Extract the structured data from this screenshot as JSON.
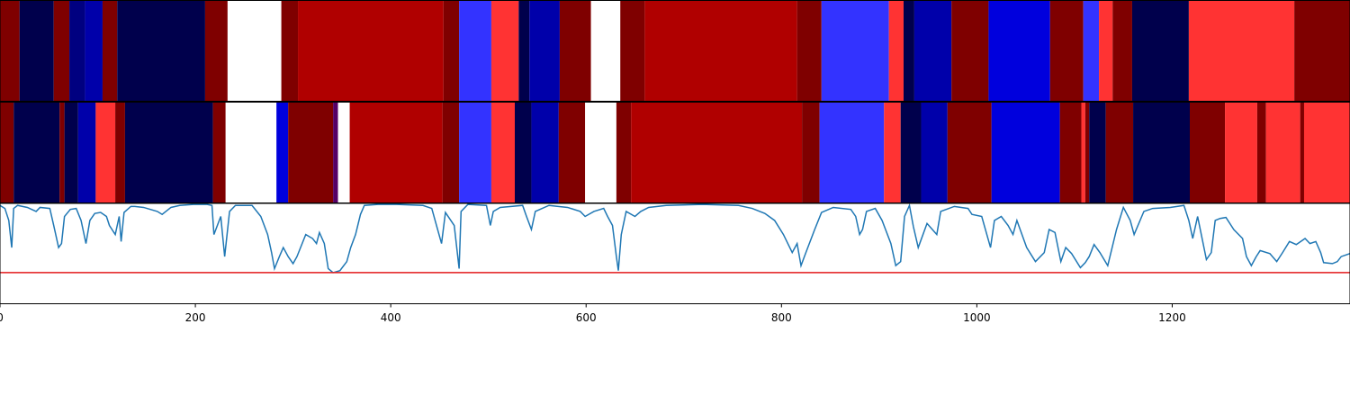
{
  "chart_data": [
    {
      "type": "segments",
      "xlim": [
        0,
        1382
      ],
      "edges": [
        0,
        20,
        55,
        71,
        87,
        105,
        120,
        210,
        233,
        288,
        305,
        454,
        470,
        503,
        531,
        542,
        573,
        605,
        635,
        660,
        816,
        841,
        910,
        925,
        936,
        974,
        1012,
        1075,
        1109,
        1125,
        1139,
        1159,
        1217,
        1325,
        1382
      ],
      "colors": [
        "#7f0000",
        "#00004c",
        "#7f0000",
        "#000080",
        "#0000aa",
        "#7f0000",
        "#00004c",
        "#7f0000",
        "#ffffff",
        "#7f0000",
        "#b00000",
        "#7f0000",
        "#3333ff",
        "#ff3333",
        "#00004c",
        "#0000aa",
        "#7f0000",
        "#ffffff",
        "#7f0000",
        "#b00000",
        "#7f0000",
        "#3333ff",
        "#ff3333",
        "#00004c",
        "#0000aa",
        "#7f0000",
        "#0000dd",
        "#7f0000",
        "#3333ff",
        "#ff3333",
        "#7f0000",
        "#00004c",
        "#ff3333",
        "#7f0000"
      ]
    },
    {
      "type": "segments",
      "xlim": [
        0,
        1382
      ],
      "edges": [
        0,
        14,
        61,
        66,
        80,
        98,
        118,
        128,
        218,
        231,
        283,
        295,
        341,
        346,
        358,
        453,
        470,
        503,
        527,
        544,
        572,
        599,
        631,
        646,
        821,
        839,
        905,
        922,
        943,
        970,
        1015,
        1085,
        1107,
        1111,
        1115,
        1132,
        1160,
        1218,
        1254,
        1287,
        1296,
        1331,
        1335,
        1382
      ],
      "colors": [
        "#7f0000",
        "#00004c",
        "#7f0000",
        "#00004c",
        "#0000aa",
        "#ff3333",
        "#7f0000",
        "#00004c",
        "#7f0000",
        "#ffffff",
        "#0000dd",
        "#7f0000",
        "#550066",
        "#ffffff",
        "#b00000",
        "#7f0000",
        "#3333ff",
        "#ff3333",
        "#00004c",
        "#0000aa",
        "#7f0000",
        "#ffffff",
        "#7f0000",
        "#b00000",
        "#7f0000",
        "#3333ff",
        "#ff3333",
        "#00004c",
        "#0000aa",
        "#7f0000",
        "#0000dd",
        "#7f0000",
        "#ff3333",
        "#7f0000",
        "#00004c",
        "#7f0000",
        "#00004c",
        "#7f0000",
        "#ff3333",
        "#7f0000",
        "#ff3333",
        "#7f0000",
        "#ff3333"
      ]
    },
    {
      "type": "line",
      "xlim": [
        0,
        1382
      ],
      "ylim": [
        0,
        1
      ],
      "xticks": [
        0,
        200,
        400,
        600,
        800,
        1000,
        1200
      ],
      "color": "#1f77b4",
      "threshold": 0.31,
      "threshold_color": "#e31a1c",
      "x": [
        0,
        5,
        9,
        12,
        14,
        18,
        28,
        37,
        41,
        51,
        55,
        60,
        63,
        66,
        72,
        78,
        83,
        88,
        92,
        97,
        103,
        109,
        112,
        118,
        122,
        124,
        127,
        134,
        138,
        147,
        161,
        166,
        175,
        184,
        198,
        212,
        217,
        219,
        226,
        230,
        235,
        241,
        258,
        267,
        274,
        278,
        281,
        286,
        290,
        295,
        300,
        304,
        313,
        320,
        324,
        327,
        332,
        336,
        341,
        348,
        355,
        359,
        364,
        369,
        373,
        387,
        406,
        433,
        442,
        452,
        456,
        465,
        470,
        472,
        479,
        498,
        502,
        505,
        512,
        535,
        539,
        544,
        548,
        562,
        581,
        594,
        599,
        608,
        618,
        622,
        627,
        631,
        633,
        636,
        641,
        650,
        656,
        664,
        682,
        719,
        756,
        770,
        783,
        793,
        802,
        811,
        816,
        820,
        825,
        834,
        841,
        853,
        871,
        876,
        880,
        883,
        887,
        896,
        903,
        912,
        917,
        922,
        926,
        931,
        935,
        940,
        949,
        959,
        963,
        977,
        991,
        995,
        1005,
        1014,
        1018,
        1025,
        1032,
        1037,
        1041,
        1051,
        1060,
        1069,
        1074,
        1080,
        1086,
        1091,
        1097,
        1106,
        1111,
        1115,
        1120,
        1126,
        1134,
        1143,
        1150,
        1157,
        1161,
        1171,
        1180,
        1198,
        1212,
        1217,
        1221,
        1226,
        1235,
        1240,
        1244,
        1249,
        1255,
        1263,
        1272,
        1276,
        1281,
        1286,
        1290,
        1300,
        1307,
        1313,
        1320,
        1327,
        1336,
        1341,
        1347,
        1352,
        1355,
        1364,
        1369,
        1373,
        1382
      ],
      "y": [
        0.98,
        0.95,
        0.83,
        0.56,
        0.95,
        0.98,
        0.96,
        0.92,
        0.96,
        0.95,
        0.78,
        0.56,
        0.6,
        0.87,
        0.94,
        0.95,
        0.83,
        0.6,
        0.83,
        0.9,
        0.91,
        0.87,
        0.78,
        0.69,
        0.87,
        0.62,
        0.91,
        0.97,
        0.97,
        0.96,
        0.92,
        0.89,
        0.96,
        0.98,
        0.99,
        0.99,
        0.98,
        0.69,
        0.87,
        0.47,
        0.92,
        0.98,
        0.98,
        0.87,
        0.69,
        0.51,
        0.35,
        0.47,
        0.56,
        0.47,
        0.4,
        0.47,
        0.69,
        0.65,
        0.6,
        0.71,
        0.6,
        0.35,
        0.31,
        0.33,
        0.42,
        0.56,
        0.69,
        0.89,
        0.98,
        0.99,
        0.99,
        0.98,
        0.95,
        0.6,
        0.91,
        0.78,
        0.35,
        0.92,
        0.99,
        0.98,
        0.78,
        0.92,
        0.96,
        0.98,
        0.87,
        0.74,
        0.92,
        0.98,
        0.96,
        0.92,
        0.87,
        0.92,
        0.95,
        0.87,
        0.78,
        0.47,
        0.33,
        0.69,
        0.92,
        0.87,
        0.92,
        0.96,
        0.98,
        0.99,
        0.98,
        0.95,
        0.9,
        0.83,
        0.69,
        0.51,
        0.6,
        0.38,
        0.51,
        0.74,
        0.91,
        0.96,
        0.94,
        0.87,
        0.69,
        0.74,
        0.92,
        0.95,
        0.83,
        0.6,
        0.38,
        0.42,
        0.87,
        0.98,
        0.77,
        0.56,
        0.8,
        0.69,
        0.92,
        0.97,
        0.95,
        0.89,
        0.87,
        0.56,
        0.83,
        0.87,
        0.78,
        0.69,
        0.83,
        0.56,
        0.42,
        0.51,
        0.74,
        0.71,
        0.42,
        0.56,
        0.5,
        0.36,
        0.41,
        0.47,
        0.59,
        0.51,
        0.38,
        0.74,
        0.96,
        0.83,
        0.69,
        0.92,
        0.95,
        0.96,
        0.98,
        0.83,
        0.65,
        0.87,
        0.44,
        0.51,
        0.83,
        0.85,
        0.86,
        0.74,
        0.65,
        0.47,
        0.38,
        0.47,
        0.53,
        0.5,
        0.42,
        0.51,
        0.62,
        0.59,
        0.65,
        0.6,
        0.62,
        0.51,
        0.41,
        0.4,
        0.42,
        0.47,
        0.5
      ]
    }
  ]
}
